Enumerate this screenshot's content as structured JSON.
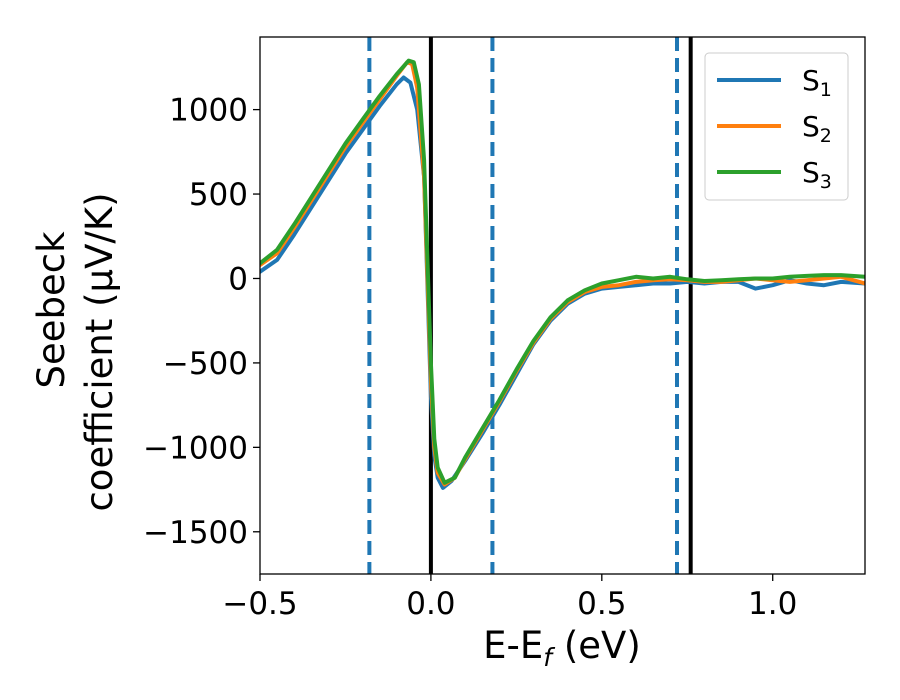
{
  "chart_data": {
    "type": "line",
    "xlabel": "E-E",
    "xlabel_sub": "f",
    "xlabel_unit": " (eV)",
    "ylabel_line1": "Seebeck",
    "ylabel_line2": "coefficient  (μV/K)",
    "xlim": [
      -0.5,
      1.27
    ],
    "ylim": [
      -1750,
      1430
    ],
    "xticks": [
      -0.5,
      0.0,
      0.5,
      1.0
    ],
    "xtick_labels": [
      "−0.5",
      "0.0",
      "0.5",
      "1.0"
    ],
    "yticks": [
      -1500,
      -1000,
      -500,
      0,
      500,
      1000
    ],
    "ytick_labels": [
      "−1500",
      "−1000",
      "−500",
      "0",
      "500",
      "1000"
    ],
    "grid": false,
    "legend": {
      "placement": "top-right",
      "entries": [
        {
          "label": "S",
          "sub": "1"
        },
        {
          "label": "S",
          "sub": "2"
        },
        {
          "label": "S",
          "sub": "3"
        }
      ]
    },
    "vlines": [
      {
        "x": -0.18,
        "style": "dashed",
        "color": "#1f77b4"
      },
      {
        "x": 0.0,
        "style": "solid",
        "color": "#000000"
      },
      {
        "x": 0.18,
        "style": "dashed",
        "color": "#1f77b4"
      },
      {
        "x": 0.72,
        "style": "dashed",
        "color": "#1f77b4"
      },
      {
        "x": 0.76,
        "style": "solid",
        "color": "#000000"
      }
    ],
    "series": [
      {
        "name": "S1",
        "color": "#1f77b4",
        "points": [
          [
            -0.5,
            40
          ],
          [
            -0.45,
            110
          ],
          [
            -0.4,
            260
          ],
          [
            -0.35,
            420
          ],
          [
            -0.3,
            580
          ],
          [
            -0.25,
            740
          ],
          [
            -0.2,
            880
          ],
          [
            -0.15,
            1020
          ],
          [
            -0.1,
            1150
          ],
          [
            -0.08,
            1190
          ],
          [
            -0.06,
            1160
          ],
          [
            -0.04,
            1000
          ],
          [
            -0.02,
            600
          ],
          [
            0.0,
            -700
          ],
          [
            0.01,
            -1050
          ],
          [
            0.02,
            -1180
          ],
          [
            0.035,
            -1240
          ],
          [
            0.06,
            -1200
          ],
          [
            0.1,
            -1080
          ],
          [
            0.15,
            -920
          ],
          [
            0.2,
            -750
          ],
          [
            0.25,
            -570
          ],
          [
            0.3,
            -390
          ],
          [
            0.35,
            -250
          ],
          [
            0.4,
            -150
          ],
          [
            0.45,
            -90
          ],
          [
            0.5,
            -60
          ],
          [
            0.55,
            -50
          ],
          [
            0.6,
            -40
          ],
          [
            0.65,
            -30
          ],
          [
            0.7,
            -30
          ],
          [
            0.75,
            -20
          ],
          [
            0.8,
            -30
          ],
          [
            0.85,
            -20
          ],
          [
            0.9,
            -20
          ],
          [
            0.95,
            -60
          ],
          [
            1.0,
            -40
          ],
          [
            1.05,
            -10
          ],
          [
            1.1,
            -30
          ],
          [
            1.15,
            -40
          ],
          [
            1.2,
            -20
          ],
          [
            1.27,
            -30
          ]
        ]
      },
      {
        "name": "S2",
        "color": "#ff7f0e",
        "points": [
          [
            -0.5,
            80
          ],
          [
            -0.45,
            150
          ],
          [
            -0.4,
            300
          ],
          [
            -0.35,
            460
          ],
          [
            -0.3,
            620
          ],
          [
            -0.25,
            780
          ],
          [
            -0.2,
            920
          ],
          [
            -0.15,
            1060
          ],
          [
            -0.1,
            1200
          ],
          [
            -0.07,
            1280
          ],
          [
            -0.055,
            1270
          ],
          [
            -0.04,
            1130
          ],
          [
            -0.02,
            600
          ],
          [
            0.0,
            -600
          ],
          [
            0.01,
            -1000
          ],
          [
            0.02,
            -1150
          ],
          [
            0.04,
            -1220
          ],
          [
            0.07,
            -1180
          ],
          [
            0.1,
            -1070
          ],
          [
            0.15,
            -900
          ],
          [
            0.2,
            -730
          ],
          [
            0.25,
            -550
          ],
          [
            0.3,
            -380
          ],
          [
            0.35,
            -240
          ],
          [
            0.4,
            -140
          ],
          [
            0.45,
            -80
          ],
          [
            0.5,
            -50
          ],
          [
            0.55,
            -40
          ],
          [
            0.6,
            -20
          ],
          [
            0.65,
            -10
          ],
          [
            0.7,
            -5
          ],
          [
            0.75,
            -10
          ],
          [
            0.8,
            -20
          ],
          [
            0.85,
            -20
          ],
          [
            0.9,
            -10
          ],
          [
            0.95,
            0
          ],
          [
            1.0,
            -10
          ],
          [
            1.05,
            -20
          ],
          [
            1.1,
            -10
          ],
          [
            1.15,
            0
          ],
          [
            1.2,
            10
          ],
          [
            1.27,
            -30
          ]
        ]
      },
      {
        "name": "S3",
        "color": "#2ca02c",
        "points": [
          [
            -0.5,
            90
          ],
          [
            -0.45,
            170
          ],
          [
            -0.4,
            320
          ],
          [
            -0.35,
            480
          ],
          [
            -0.3,
            640
          ],
          [
            -0.25,
            800
          ],
          [
            -0.2,
            940
          ],
          [
            -0.15,
            1080
          ],
          [
            -0.1,
            1210
          ],
          [
            -0.065,
            1290
          ],
          [
            -0.05,
            1280
          ],
          [
            -0.035,
            1150
          ],
          [
            -0.02,
            700
          ],
          [
            0.0,
            -500
          ],
          [
            0.01,
            -950
          ],
          [
            0.02,
            -1120
          ],
          [
            0.04,
            -1210
          ],
          [
            0.07,
            -1180
          ],
          [
            0.1,
            -1060
          ],
          [
            0.15,
            -890
          ],
          [
            0.2,
            -720
          ],
          [
            0.25,
            -540
          ],
          [
            0.3,
            -370
          ],
          [
            0.35,
            -230
          ],
          [
            0.4,
            -130
          ],
          [
            0.45,
            -70
          ],
          [
            0.5,
            -30
          ],
          [
            0.55,
            -10
          ],
          [
            0.6,
            10
          ],
          [
            0.65,
            0
          ],
          [
            0.7,
            10
          ],
          [
            0.75,
            -5
          ],
          [
            0.8,
            -15
          ],
          [
            0.85,
            -10
          ],
          [
            0.9,
            -5
          ],
          [
            0.95,
            0
          ],
          [
            1.0,
            0
          ],
          [
            1.05,
            10
          ],
          [
            1.1,
            15
          ],
          [
            1.15,
            20
          ],
          [
            1.2,
            20
          ],
          [
            1.27,
            10
          ]
        ]
      }
    ]
  }
}
